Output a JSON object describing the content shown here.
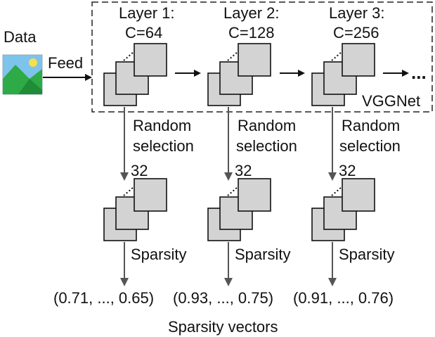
{
  "data_label": "Data",
  "feed_label": "Feed",
  "network_label": "VGGNet",
  "continuation": "...",
  "layers": [
    {
      "title": "Layer 1:",
      "channels": "C=64",
      "selection_line1": "Random",
      "selection_line2": "selection",
      "selected_count": "32",
      "sparsity_label": "Sparsity",
      "vector": "(0.71, ..., 0.65)"
    },
    {
      "title": "Layer 2:",
      "channels": "C=128",
      "selection_line1": "Random",
      "selection_line2": "selection",
      "selected_count": "32",
      "sparsity_label": "Sparsity",
      "vector": "(0.93, ..., 0.75)"
    },
    {
      "title": "Layer 3:",
      "channels": "C=256",
      "selection_line1": "Random",
      "selection_line2": "selection",
      "selected_count": "32",
      "sparsity_label": "Sparsity",
      "vector": "(0.91, ..., 0.76)"
    }
  ],
  "footer": "Sparsity vectors",
  "icons": {
    "data": "image-icon",
    "network": "feature-map-stack-icon"
  },
  "colors": {
    "sky": "#7ec3ec",
    "mountain": "#2eaa46",
    "sun": "#f4e04d",
    "square_fill": "#d3d3d3"
  }
}
